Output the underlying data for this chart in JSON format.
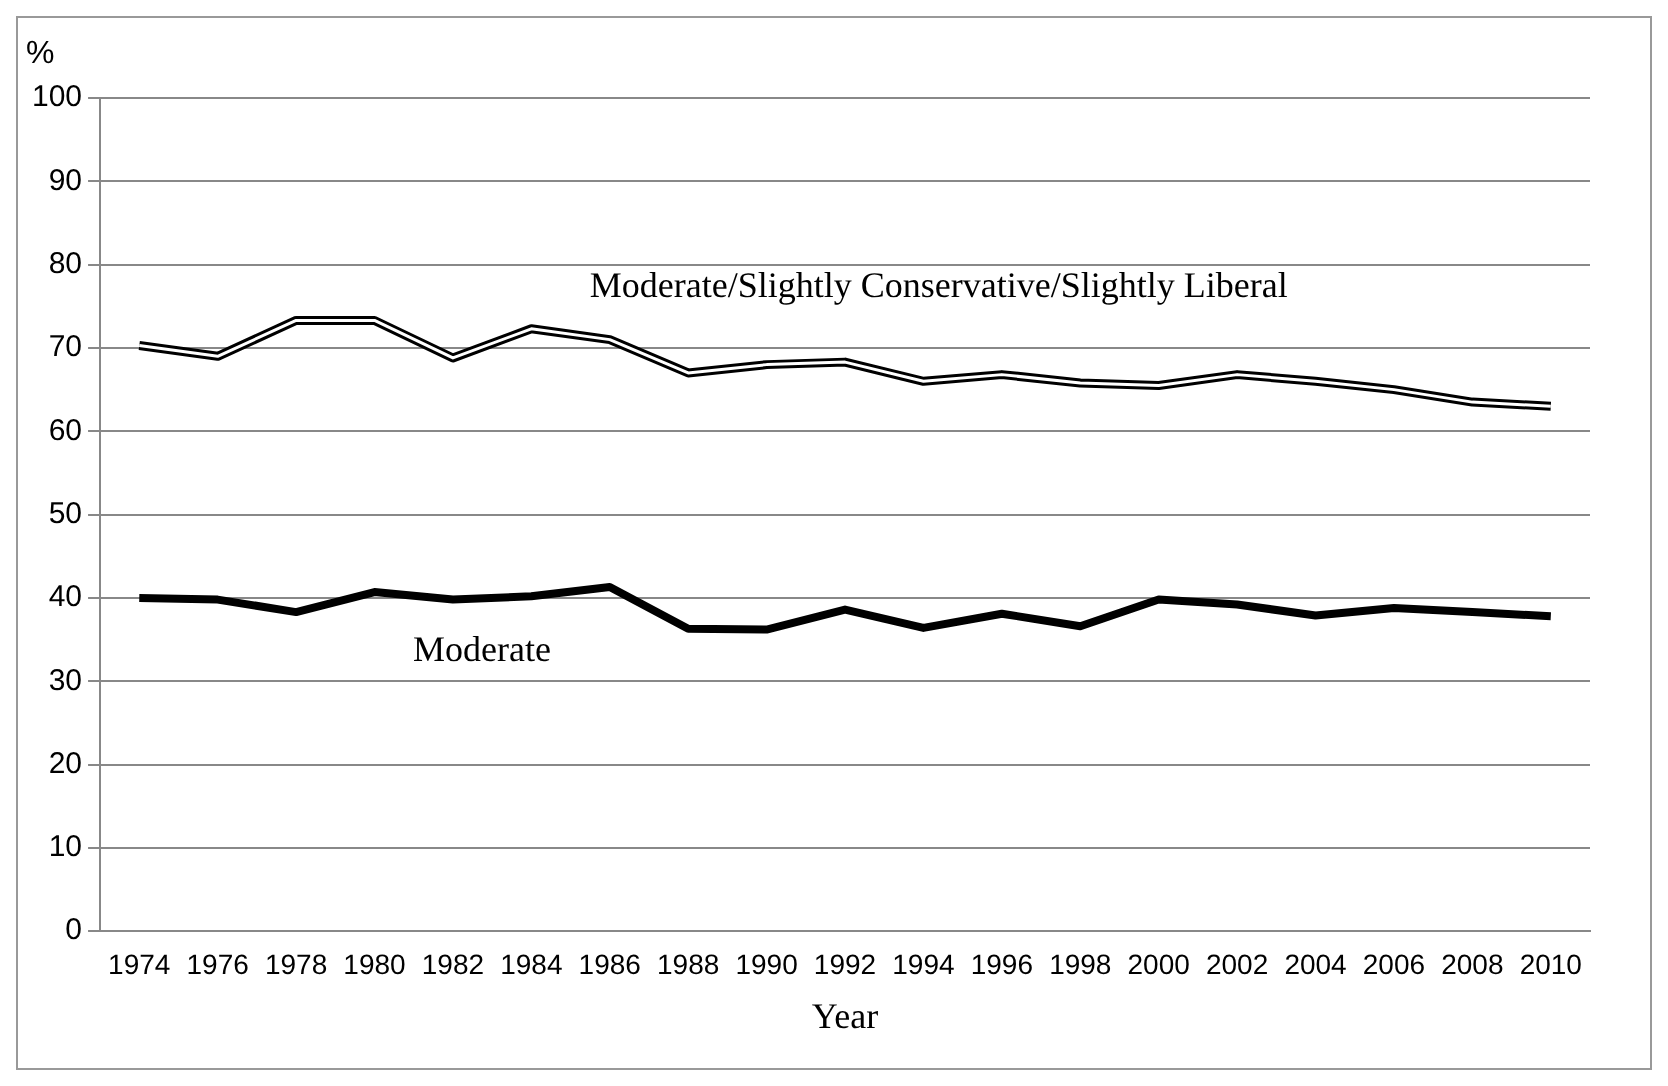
{
  "chart_data": {
    "type": "line",
    "xlabel": "Year",
    "ylabel": "%",
    "categories": [
      "1974",
      "1976",
      "1978",
      "1980",
      "1982",
      "1984",
      "1986",
      "1988",
      "1990",
      "1992",
      "1994",
      "1996",
      "1998",
      "2000",
      "2002",
      "2004",
      "2006",
      "2008",
      "2010"
    ],
    "series": [
      {
        "name": "Moderate/Slightly Conservative/Slightly Liberal",
        "color": "#000000",
        "values": [
          70.3,
          69,
          73.3,
          73.3,
          68.8,
          72.3,
          71,
          67,
          68,
          68.3,
          66,
          66.8,
          65.8,
          65.5,
          66.8,
          66,
          65,
          63.5,
          63
        ]
      },
      {
        "name": "Moderate",
        "color": "#000000",
        "values": [
          40,
          39.8,
          38.3,
          40.7,
          39.8,
          40.2,
          41.3,
          36.3,
          36.2,
          38.6,
          36.4,
          38.1,
          36.6,
          39.8,
          39.2,
          37.9,
          38.8,
          38.3,
          37.8
        ]
      }
    ],
    "ylim": [
      0,
      100
    ],
    "yticks": [
      0,
      10,
      20,
      30,
      40,
      50,
      60,
      70,
      80,
      90,
      100
    ],
    "grid": "y",
    "legend": false,
    "marker": "none",
    "line_style": "solid"
  }
}
